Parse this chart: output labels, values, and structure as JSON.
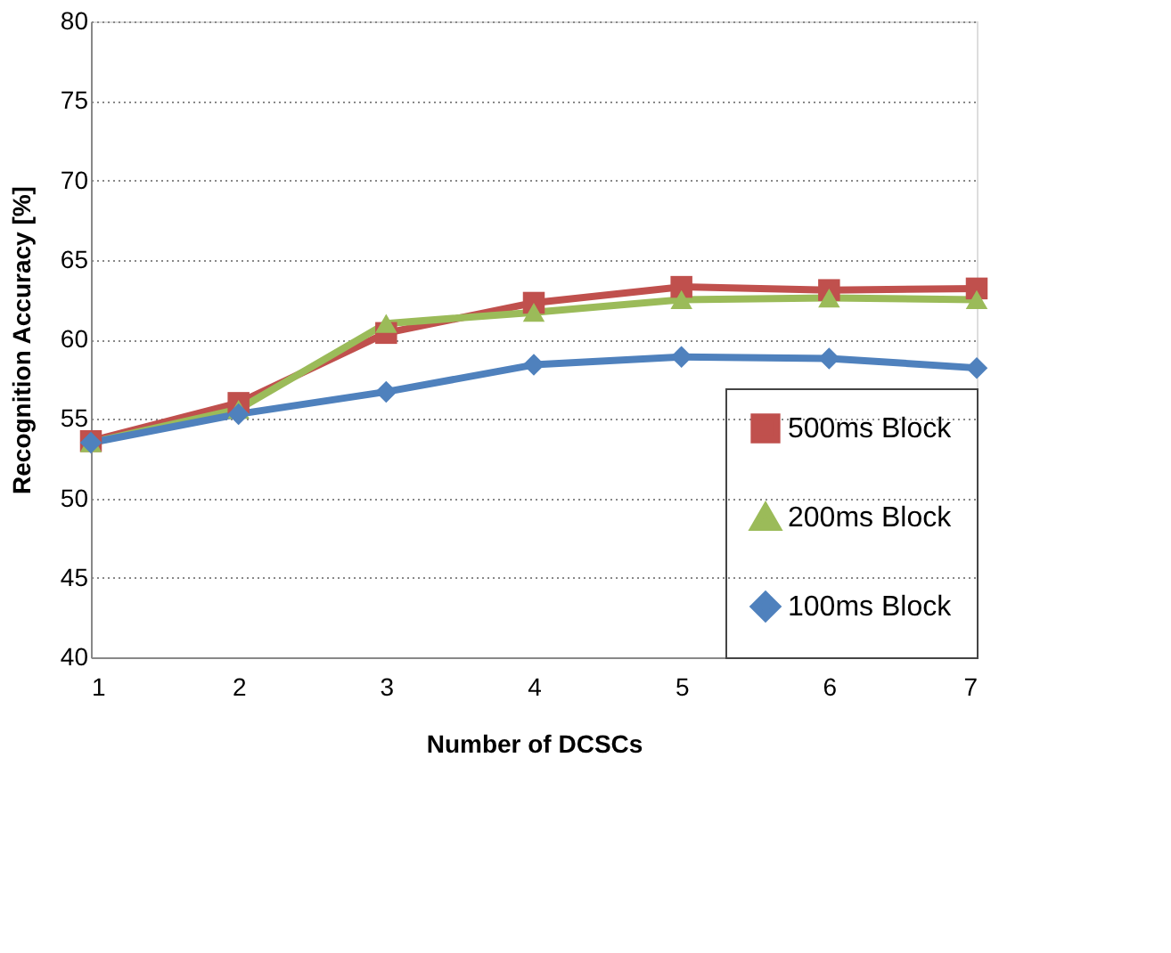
{
  "chart_data": {
    "type": "line",
    "xlabel": "Number of DCSCs",
    "ylabel": "Recognition Accuracy  [%]",
    "x": [
      1,
      2,
      3,
      4,
      5,
      6,
      7
    ],
    "xlim": [
      1,
      7
    ],
    "xticks": [
      1,
      2,
      3,
      4,
      5,
      6,
      7
    ],
    "ylim": [
      40,
      80
    ],
    "yticks": [
      40,
      45,
      50,
      55,
      60,
      65,
      70,
      75,
      80
    ],
    "grid": "y",
    "legend": "bottom right",
    "line_style": "solid",
    "series": [
      {
        "name": "500ms Block",
        "color": "#c0504d",
        "marker": "square",
        "values": [
          53.6,
          56.0,
          60.4,
          62.3,
          63.3,
          63.1,
          63.2
        ]
      },
      {
        "name": "200ms Block",
        "color": "#9bbb59",
        "marker": "triangle",
        "values": [
          53.5,
          55.6,
          61.0,
          61.7,
          62.5,
          62.6,
          62.5
        ]
      },
      {
        "name": "100ms Block",
        "color": "#4f81bd",
        "marker": "diamond",
        "values": [
          53.5,
          55.3,
          56.7,
          58.4,
          58.9,
          58.8,
          58.2
        ]
      }
    ]
  }
}
